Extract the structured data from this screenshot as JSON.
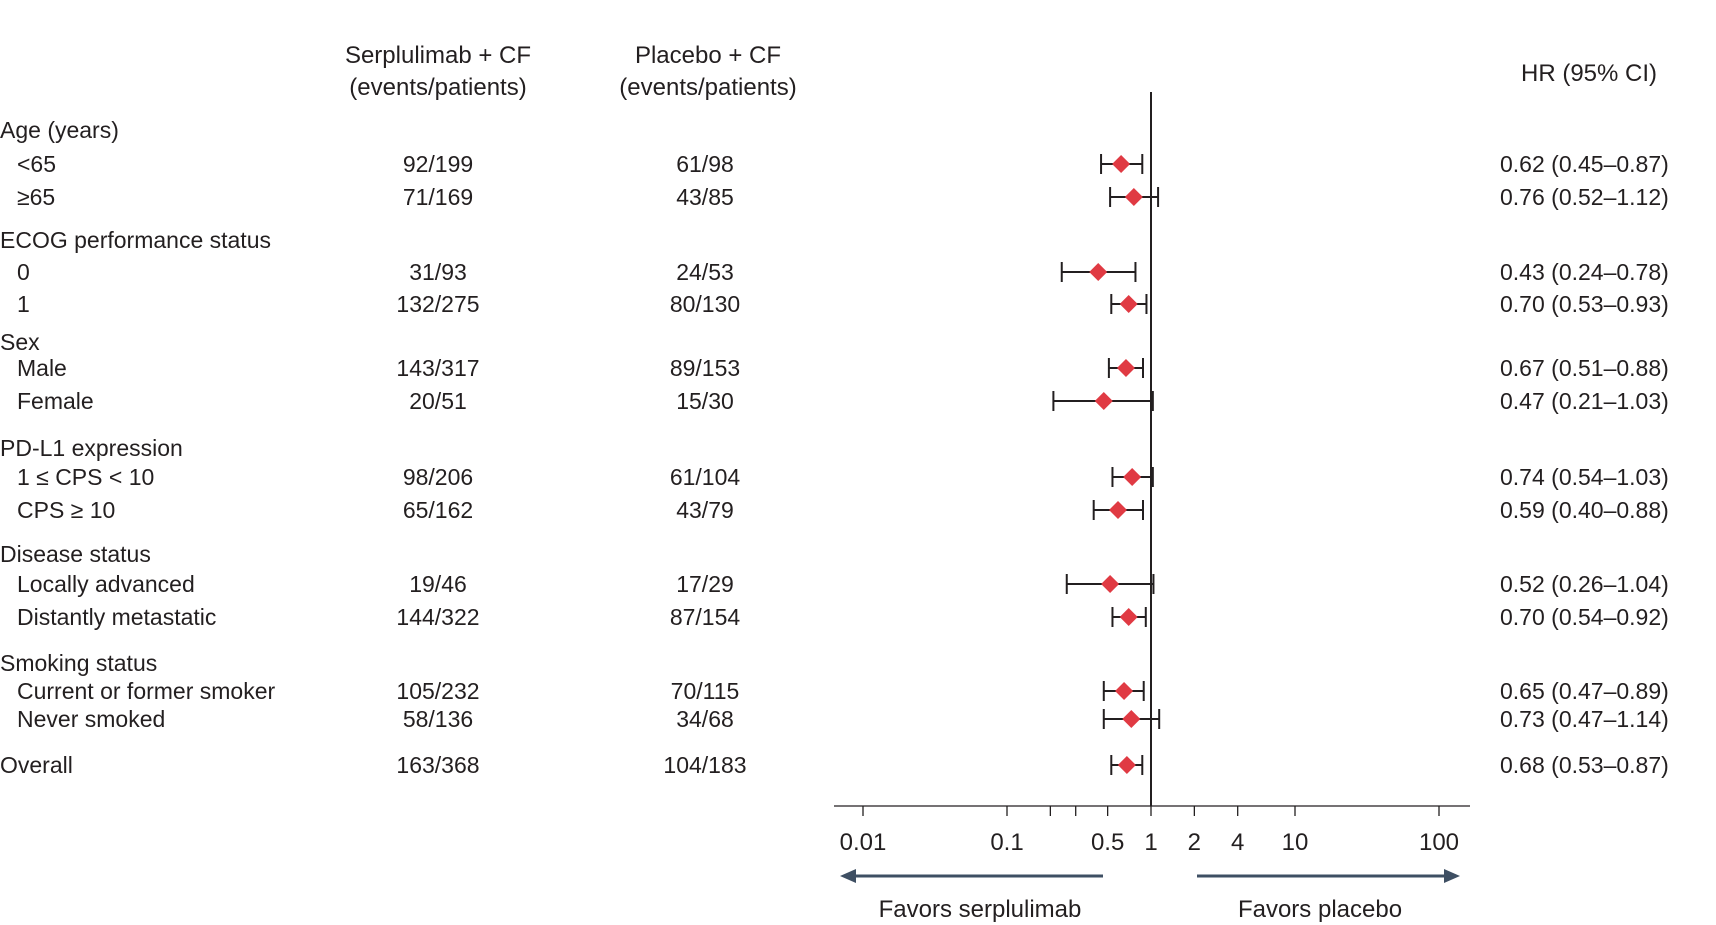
{
  "headers": {
    "arm1_line1": "Serplulimab + CF",
    "arm1_line2": "(events/patients)",
    "arm2_line1": "Placebo + CF",
    "arm2_line2": "(events/patients)",
    "hr": "HR (95% CI)"
  },
  "groups": [
    {
      "label": "Age (years)"
    },
    {
      "label": "ECOG performance status"
    },
    {
      "label": "Sex"
    },
    {
      "label": "PD-L1 expression"
    },
    {
      "label": "Disease status"
    },
    {
      "label": "Smoking status"
    }
  ],
  "rows": [
    {
      "label": "<65",
      "arm1": "92/199",
      "arm2": "61/98",
      "ci_text": "0.62 (0.45–0.87)"
    },
    {
      "label": "≥65",
      "arm1": "71/169",
      "arm2": "43/85",
      "ci_text": "0.76 (0.52–1.12)"
    },
    {
      "label": "0",
      "arm1": "31/93",
      "arm2": "24/53",
      "ci_text": "0.43 (0.24–0.78)"
    },
    {
      "label": "1",
      "arm1": "132/275",
      "arm2": "80/130",
      "ci_text": "0.70 (0.53–0.93)"
    },
    {
      "label": "Male",
      "arm1": "143/317",
      "arm2": "89/153",
      "ci_text": "0.67 (0.51–0.88)"
    },
    {
      "label": "Female",
      "arm1": "20/51",
      "arm2": "15/30",
      "ci_text": "0.47 (0.21–1.03)"
    },
    {
      "label": "1 ≤ CPS < 10",
      "arm1": "98/206",
      "arm2": "61/104",
      "ci_text": "0.74 (0.54–1.03)"
    },
    {
      "label": "CPS ≥ 10",
      "arm1": "65/162",
      "arm2": "43/79",
      "ci_text": "0.59 (0.40–0.88)"
    },
    {
      "label": "Locally advanced",
      "arm1": "19/46",
      "arm2": "17/29",
      "ci_text": "0.52 (0.26–1.04)"
    },
    {
      "label": "Distantly metastatic",
      "arm1": "144/322",
      "arm2": "87/154",
      "ci_text": "0.70 (0.54–0.92)"
    },
    {
      "label": "Current or former smoker",
      "arm1": "105/232",
      "arm2": "70/115",
      "ci_text": "0.65 (0.47–0.89)"
    },
    {
      "label": "Never smoked",
      "arm1": "58/136",
      "arm2": "34/68",
      "ci_text": "0.73 (0.47–1.14)"
    },
    {
      "label": "Overall",
      "arm1": "163/368",
      "arm2": "104/183",
      "ci_text": "0.68 (0.53–0.87)"
    }
  ],
  "chart_data": {
    "type": "forest",
    "scale": "log",
    "xlim": [
      0.007,
      200
    ],
    "reference_line": 1,
    "marker_color": "#e03a43",
    "line_color": "#231f20",
    "arrow_color": "#3e4f63",
    "ticks": [
      {
        "value": 0.01,
        "label": "0.01"
      },
      {
        "value": 0.1,
        "label": "0.1"
      },
      {
        "value": 0.5,
        "label": "0.5"
      },
      {
        "value": 1,
        "label": "1"
      },
      {
        "value": 2,
        "label": "2"
      },
      {
        "value": 4,
        "label": "4"
      },
      {
        "value": 10,
        "label": "10"
      },
      {
        "value": 100,
        "label": "100"
      }
    ],
    "favors_left": "Favors serplulimab",
    "favors_right": "Favors placebo",
    "estimates": [
      {
        "subgroup": "<65",
        "hr": 0.62,
        "lower": 0.45,
        "upper": 0.87
      },
      {
        "subgroup": "≥65",
        "hr": 0.76,
        "lower": 0.52,
        "upper": 1.12
      },
      {
        "subgroup": "0",
        "hr": 0.43,
        "lower": 0.24,
        "upper": 0.78
      },
      {
        "subgroup": "1",
        "hr": 0.7,
        "lower": 0.53,
        "upper": 0.93
      },
      {
        "subgroup": "Male",
        "hr": 0.67,
        "lower": 0.51,
        "upper": 0.88
      },
      {
        "subgroup": "Female",
        "hr": 0.47,
        "lower": 0.21,
        "upper": 1.03
      },
      {
        "subgroup": "1 ≤ CPS < 10",
        "hr": 0.74,
        "lower": 0.54,
        "upper": 1.03
      },
      {
        "subgroup": "CPS ≥ 10",
        "hr": 0.59,
        "lower": 0.4,
        "upper": 0.88
      },
      {
        "subgroup": "Locally advanced",
        "hr": 0.52,
        "lower": 0.26,
        "upper": 1.04
      },
      {
        "subgroup": "Distantly metastatic",
        "hr": 0.7,
        "lower": 0.54,
        "upper": 0.92
      },
      {
        "subgroup": "Current or former smoker",
        "hr": 0.65,
        "lower": 0.47,
        "upper": 0.89
      },
      {
        "subgroup": "Never smoked",
        "hr": 0.73,
        "lower": 0.47,
        "upper": 1.14
      },
      {
        "subgroup": "Overall",
        "hr": 0.68,
        "lower": 0.53,
        "upper": 0.87
      }
    ]
  }
}
